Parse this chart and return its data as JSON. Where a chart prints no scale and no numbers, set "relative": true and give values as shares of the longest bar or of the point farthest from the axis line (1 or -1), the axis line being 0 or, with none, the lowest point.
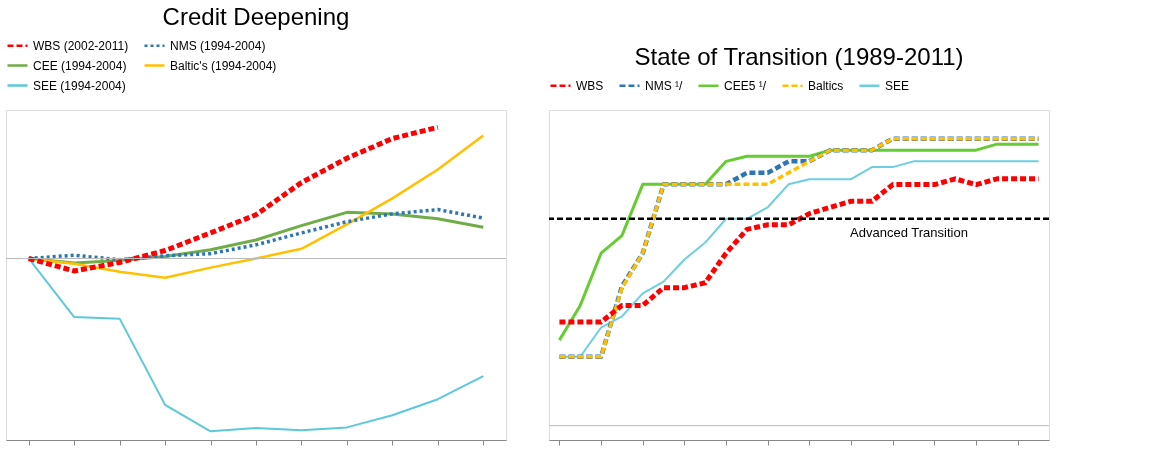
{
  "chart_data": [
    {
      "type": "line",
      "title": "Credit Deepening",
      "relative": true,
      "legend": "top",
      "grid": false,
      "categories": [
        null,
        null,
        null,
        null,
        null,
        null,
        null,
        null,
        null,
        null,
        null
      ],
      "series": [
        {
          "name": "WBS (2002-2011)",
          "color": "#ff0000",
          "line_style": "dashed",
          "values": [
            0,
            -0.072,
            -0.023,
            0.046,
            0.148,
            0.253,
            0.439,
            0.58,
            0.694,
            0.759,
            null
          ]
        },
        {
          "name": "NMS (1994-2004)",
          "color": "#2e75b6",
          "line_style": "dotted",
          "values": [
            0,
            0.019,
            -0.007,
            0.016,
            0.028,
            0.079,
            0.148,
            0.213,
            0.258,
            0.283,
            0.234
          ]
        },
        {
          "name": "CEE (1994-2004)",
          "color": "#70ad47",
          "line_style": "solid",
          "values": [
            0,
            -0.026,
            -0.012,
            0.012,
            0.051,
            0.107,
            0.19,
            0.267,
            0.258,
            0.23,
            0.181
          ]
        },
        {
          "name": "Baltic's (1994-2004)",
          "color": "#ffc000",
          "line_style": "solid",
          "values": [
            0,
            -0.03,
            -0.077,
            -0.111,
            -0.053,
            0,
            0.056,
            0.197,
            0.348,
            0.515,
            0.712
          ]
        },
        {
          "name": "SEE (1994-2004)",
          "color": "#5bc8dc",
          "line_style": "solid",
          "values": [
            0,
            -0.339,
            -0.348,
            -0.847,
            -1.0,
            -0.981,
            -0.993,
            -0.977,
            -0.907,
            -0.814,
            -0.68
          ]
        }
      ]
    },
    {
      "type": "line",
      "title": "State of Transition (1989-2011)",
      "relative": true,
      "legend": "top",
      "grid": false,
      "categories": [
        null,
        null,
        null,
        null,
        null,
        null,
        null,
        null,
        null,
        null,
        null,
        null,
        null,
        null,
        null,
        null,
        null,
        null,
        null,
        null,
        null,
        null,
        null,
        null
      ],
      "ref_lines": [
        {
          "axis": "y",
          "value": 0.721,
          "label": "Advanced Transition",
          "color": "#000000",
          "line_style": "dashed"
        }
      ],
      "series": [
        {
          "name": "WBS",
          "color": "#ff0000",
          "line_style": "dashed",
          "values": [
            0.361,
            0.361,
            0.361,
            0.419,
            0.419,
            0.481,
            0.481,
            0.498,
            0.601,
            0.684,
            0.7,
            0.7,
            0.739,
            0.761,
            0.782,
            0.782,
            0.84,
            0.84,
            0.84,
            0.86,
            0.84,
            0.86,
            0.86,
            0.86
          ]
        },
        {
          "name": "NMS ¹/",
          "color": "#2e75b6",
          "line_style": "dashed",
          "values": [
            0.24,
            0.24,
            0.24,
            0.485,
            0.601,
            0.841,
            0.841,
            0.841,
            0.841,
            0.881,
            0.881,
            0.921,
            0.921,
            0.96,
            0.96,
            0.96,
            1,
            1,
            1,
            1,
            1,
            1,
            1,
            1
          ]
        },
        {
          "name": "CEE5 ¹/",
          "color": "#66cc33",
          "line_style": "solid",
          "values": [
            0.298,
            0.419,
            0.601,
            0.662,
            0.841,
            0.841,
            0.841,
            0.841,
            0.921,
            0.939,
            0.939,
            0.939,
            0.939,
            0.96,
            0.96,
            0.96,
            0.96,
            0.96,
            0.96,
            0.96,
            0.96,
            0.981,
            0.981,
            0.981
          ]
        },
        {
          "name": "Baltics",
          "color": "#ffc000",
          "line_style": "dashed",
          "values": [
            0.24,
            0.24,
            0.24,
            0.48,
            0.601,
            0.841,
            0.841,
            0.841,
            0.841,
            0.841,
            0.841,
            0.881,
            0.921,
            0.96,
            0.96,
            0.96,
            1,
            1,
            1,
            1,
            1,
            1,
            1,
            1
          ]
        },
        {
          "name": "SEE",
          "color": "#6ccfe0",
          "line_style": "solid",
          "values": [
            0.24,
            0.24,
            0.342,
            0.381,
            0.461,
            0.502,
            0.579,
            0.638,
            0.721,
            0.721,
            0.761,
            0.841,
            0.859,
            0.859,
            0.859,
            0.901,
            0.901,
            0.921,
            0.921,
            0.921,
            0.921,
            0.921,
            0.921,
            0.921
          ]
        }
      ]
    }
  ]
}
